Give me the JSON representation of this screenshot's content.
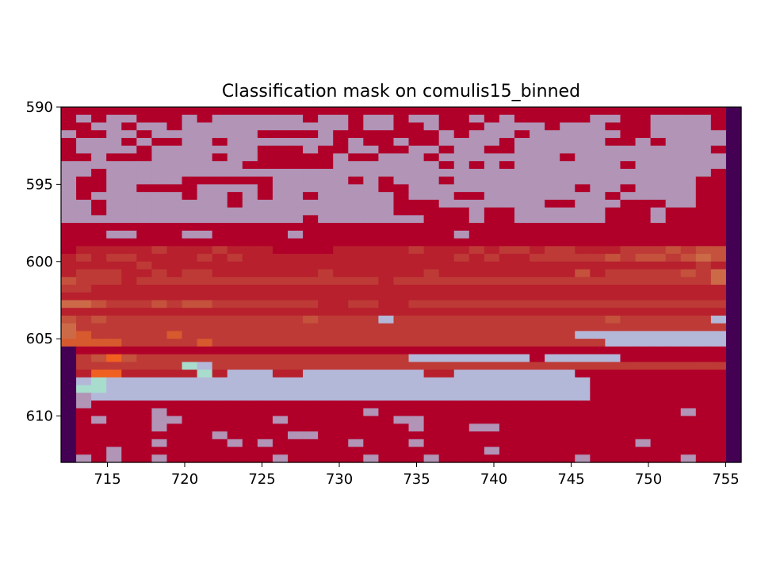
{
  "chart_data": {
    "type": "heatmap",
    "title": "Classification mask on comulis15_binned",
    "xlabel": "",
    "ylabel": "",
    "x_range": [
      712,
      756
    ],
    "y_range": [
      590,
      613
    ],
    "y_inverted": true,
    "x_ticks": [
      715,
      720,
      725,
      730,
      735,
      740,
      745,
      750,
      755
    ],
    "y_ticks": [
      590,
      595,
      600,
      605,
      610
    ],
    "grid": false,
    "colors": {
      "crimson": "#B0002A",
      "lavender": "#B194B6",
      "pale_blue": "#B4B8D8",
      "mint": "#A8DCCC",
      "orange": "#F06020",
      "dark_purple": "#440154",
      "mixed_dark": "#BA2A30",
      "mixed_mid": "#C04A38",
      "mixed_light": "#C86A4A"
    },
    "palette": {
      "R": "#B0002A",
      "P": "#B194B6",
      "B": "#B4B8D8",
      "G": "#A8DCCC",
      "O": "#F06020",
      "o": "#D65A2E",
      "V": "#440154",
      "a": "#B8202E",
      "b": "#BE3A36",
      "c": "#C4523C",
      "d": "#CC6A48"
    },
    "cells": [
      "RRRRRRRRRRRRRRRRRRRRRRRRRRRRRRRRRRRRRRRRRRRRV",
      "RPRPPRRRPRPPPPPPRPPRPPRPPRRPRPRRRRRPPRRPPPPRV",
      "RRPPRPPRPPPPPPPPPPPRPPRRPRRRPPPPRPPPRRRPPPPRV",
      "PRRPPRPPPPPPPRRRRPRRRRRRRPRPPPRPPPPPPRRPPPPPV",
      "RPPPRPRRPPRPPPPPPPRPRRPRRPPPPRPPPPPPRRPRPPPPV",
      "RPPPPRPPPPPPPRRRPRRPPRRPPRPPRRPPPPPPPPPPPPPRV",
      "RRPRRRPPPPRPPRRRRRPRRPPPRPPPPPPPPRPPPPPPPPPPV",
      "PPPPPPPPPPPPRRRRRRPPPPPPPRPRPRPPPPPPPRPPPPPPV",
      "PPRPPPPPPPPPPPPPPPPPPPPPPPPPPPPPPPPPPPPPPPPRV",
      "PRRPPPPPRRRRRRPPPPPRPRPPPRPPPPPPPPPPPPPPPPRRV",
      "PRRPPRRRRPPPPRPPPPPPPRRPPPPPPPPPPPRPPRPPPPRRV",
      "PRPPPPPPRPPRPRPPRPPPPPRPPPRRPPPPPPPPRPPPPPRRV",
      "PPRPPPPPPPPRPPPPPPPPPPRRRPPPPPPPRRPPPRRRPPRRV",
      "PPRPPPPPPPPPPPPPPPPPPPRRRRRPRRPPPPPPRRRPRRRRV",
      "PPPPPPPPPPPPPPPPRPPPPPPPRRRPRRPPPPPPRRRPRRRRV",
      "RRRRRRRRRRRRRRRRRRRRRRRRRRRRRRRRRRRRRRRRRRRRV",
      "RRRPPRRRPPRRRRRPRRRRRRRRRRPRRRRRRRRRRRRRRRRRV",
      "RRRRRRRRRRRRRRRRRRRRRRRRRRRRRRRRRRRRRRRRRRRRV",
      "RaaaaabaaabaaaRRRRaaaaabaaababbabbaaabbbcbccV",
      "ababbaaaababaaaaaaaaaaaaaababaabbbbbcbccbcdcV",
      "aaaaabaaaaaaaaaaaaaaaaaaaaaaaaaaaaaaaaaaaabaV",
      "abbbaababbaaaaaaabaaaaaabaaaaaaaaacabbbbbcbdV",
      "cbbbabbbbbbbbbbbbbbbbabbbbbbbbbbbbbbbbbbbbbdV",
      "bbaaaaaaaaaaaaaaaaaaaaaaaaaaaaaaaaaaaaaaaaaaV",
      "aaaaaaaaaaaaaaaaaaaaaaaaaaaaaaaaaaaaaaaaaaaaV",
      "ddcbbbcbccbbbbbbbaabbaabbbbbbbbbbbbbbbbbbbbbV",
      "aaaaaaaaaaaaaaaaaaaaaaaaaaaaaaaaaaaaaaaaaaaaV",
      "cbcbbbbbbbbbbbbbcbbbbBbbbbbbbbbbbbbbcbbbbbbBV",
      "dbbbbbbbbbbbbbbbbbbbbbbbbbbbbbbbbbbbbbbbbbbbV",
      "dobbbbbobbbbbbbbbbbbbbbbbbbbbbbbbbBBBBBBBBBBV",
      "oooobbbbbobbbbbbbbbbbbbbbbbbbbbbbbbbBBBBBBBBV",
      "VRRRRRRRRRRRRRRRRRRRRRRRRRRRRRRRRRRRRRRRRRRRV",
      "VbcOcbbbbbbbbbbbbbbbbbbBBBBBBBBRBBBBBRRRRRRRV",
      "VbbbbbbbGBbbbbbbbbbbbbbbbbbbbbbbbbbbbbbbbbbbV",
      "VaOOaaaaaGaBBBaaBBBBBBBBaaBBBBBBBBRRRRRRRRRRV",
      "VBGBBBBBBBBBBBBBBBBBBBBBBBBBBBBBBBBRRRRRRRRRV",
      "VGGBBBBBBBBBBBBBBBBBBBBBBBBBBBBBBBBRRRRRRRRRV",
      "VPBBBBBBBBBBBBBBBBBBBBBBBBBBBBBBBBBRRRRRRRRRV",
      "VPRRRRRRRRRRRRRRRRRRRRRRRRRRRRRRRRRRRRRRRRRRV",
      "VRRRRRPRRRRRRRRRRRRRPRRRRRRRRRRRRRRRRRRRRPRRV",
      "VRPRRRPPRRRRRRPRRRRRRRPPRRRRRRRRRRRRRRRRRRRRV",
      "VRRRRRPRRRRRRRRRRRRRRRRPRRRPPRRRRRRRRRRRRRRRV",
      "VRRRRRRRRRPRRRRPPRRRRRRRRRRRRRRRRRRRRRRRRRRRV",
      "VRRRRRPRRRRPRPRRRRRPRRRPRRRRRRRRRRRRRRPRRRRRV",
      "VRRPRRRRRRRRRRRRRRRRRRRRRRRRPRRRRRRRRRRRRRRRV",
      "VPRPRRPRRRRRRRPRRRRRPRRRPRRRRRRRRRPRRRRRRPRRV"
    ]
  }
}
